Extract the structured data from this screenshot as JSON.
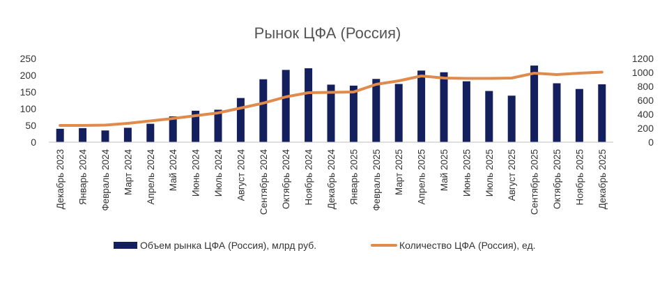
{
  "chart_data": {
    "type": "bar",
    "title": "Рынок ЦФА (Россия)",
    "categories": [
      "Декабрь 2023",
      "Январь 2024",
      "Февраль 2024",
      "Март 2024",
      "Апрель 2024",
      "Май 2024",
      "Июнь 2024",
      "Июль 2024",
      "Август 2024",
      "Сентябрь 2024",
      "Октябрь 2024",
      "Ноябрь 2024",
      "Декабрь 2024",
      "Январь 2025",
      "Февраль 2025",
      "Март 2025",
      "Апрель 2025",
      "Май 2025",
      "Июнь 2025",
      "Июль 2025",
      "Август 2025",
      "Сентябрь 2025",
      "Октябрь 2025",
      "Ноябрь 2025",
      "Декабрь 2025"
    ],
    "series": [
      {
        "name": "Объем рынка ЦФА (Россия), млрд руб.",
        "type": "bar",
        "axis": "left",
        "color": "#14205e",
        "values": [
          40,
          42,
          35,
          43,
          55,
          77,
          94,
          97,
          132,
          188,
          216,
          221,
          172,
          169,
          189,
          174,
          214,
          209,
          182,
          153,
          139,
          229,
          176,
          159,
          173
        ]
      },
      {
        "name": "Количество ЦФА (Россия), ед.",
        "type": "line",
        "axis": "right",
        "color": "#e08a4c",
        "values": [
          240,
          240,
          245,
          270,
          305,
          340,
          380,
          420,
          490,
          560,
          650,
          710,
          715,
          720,
          830,
          880,
          950,
          920,
          915,
          915,
          920,
          990,
          970,
          990,
          1005
        ]
      }
    ],
    "left_axis": {
      "ylim": [
        0,
        250
      ],
      "ticks": [
        "0",
        "50",
        "100",
        "150",
        "200",
        "250"
      ]
    },
    "right_axis": {
      "ylim": [
        0,
        1200
      ],
      "ticks": [
        "0",
        "200",
        "400",
        "600",
        "800",
        "1000",
        "1200"
      ]
    },
    "grid": false,
    "legend_position": "bottom"
  }
}
